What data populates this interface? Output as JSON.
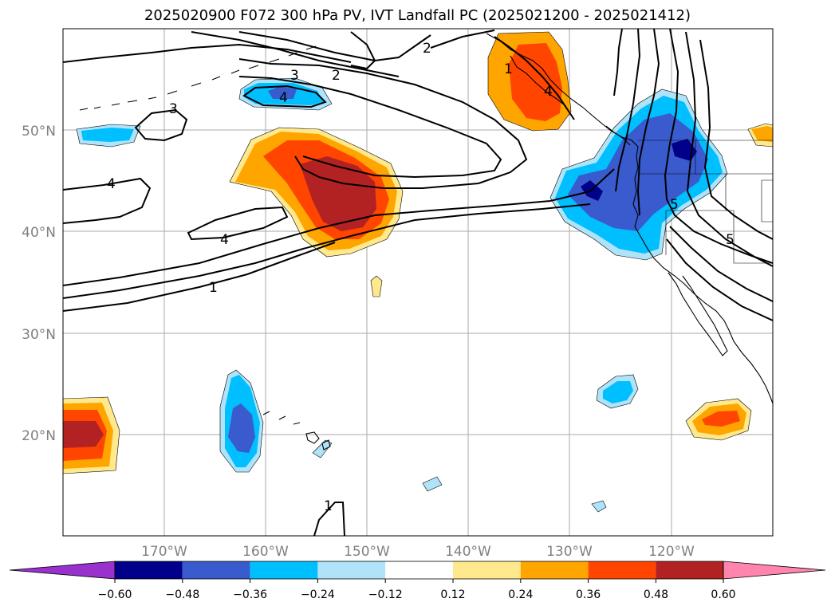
{
  "title": "2025020900 F072 300 hPa PV, IVT Landfall PC (2025021200 - 2025021412)",
  "lat_labels": [
    "50°N",
    "40°N",
    "30°N",
    "20°N"
  ],
  "lon_labels": [
    "170°W",
    "160°W",
    "150°W",
    "140°W",
    "130°W",
    "120°W"
  ],
  "contour_labels": [
    "2",
    "2",
    "3",
    "4",
    "3",
    "4",
    "4",
    "1",
    "1",
    "1",
    "4",
    "5",
    "5"
  ],
  "colorbar": {
    "ticks": [
      "−0.60",
      "−0.48",
      "−0.36",
      "−0.24",
      "−0.12",
      "0.12",
      "0.24",
      "0.36",
      "0.48",
      "0.60"
    ],
    "colors": [
      "#9932cc",
      "#00008b",
      "#3a5bcd",
      "#00bfff",
      "#aee3fa",
      "#ffffff",
      "#ffe98c",
      "#ffa500",
      "#ff4500",
      "#b22222",
      "#ff85ae"
    ]
  },
  "map": {
    "extent_lon": [
      -180,
      -110
    ],
    "extent_lat": [
      10,
      60
    ],
    "gridline_color": "#aaaaaa",
    "tick_label_color": "#808080"
  }
}
